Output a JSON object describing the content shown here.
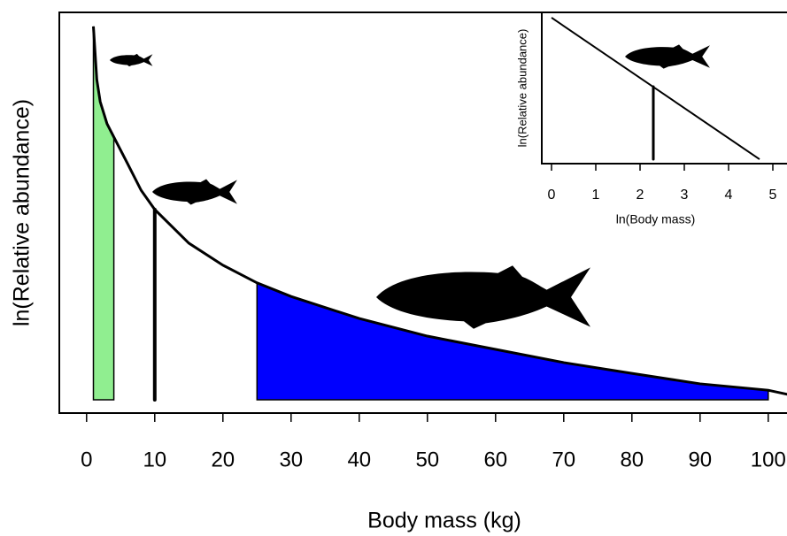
{
  "chart_data": [
    {
      "type": "line",
      "xlabel": "Body mass (kg)",
      "ylabel": "ln(Relative abundance)",
      "x": [
        1,
        1.5,
        2,
        3,
        4,
        6,
        8,
        10,
        15,
        20,
        25,
        30,
        40,
        50,
        60,
        70,
        80,
        90,
        100,
        103
      ],
      "series": [
        {
          "color": "#000000",
          "values": [
            96.5,
            83.2,
            77.7,
            72.2,
            68.9,
            62.3,
            55.6,
            50.8,
            42.4,
            36.9,
            32.5,
            29.1,
            23.6,
            19.2,
            15.9,
            12.6,
            9.9,
            7.3,
            5.7,
            4.6
          ]
        }
      ],
      "xlim": [
        -4,
        106
      ],
      "xticks": [
        0,
        10,
        20,
        30,
        40,
        50,
        60,
        70,
        80,
        90,
        100
      ],
      "ylim": [
        0,
        100
      ],
      "baseline": 3.3,
      "shaded_regions": [
        {
          "x": [
            1,
            4
          ],
          "color": "#90ee90"
        },
        {
          "x": [
            25,
            100
          ],
          "color": "#0000ff"
        }
      ],
      "marker": {
        "x": 10,
        "y": [
          3.3,
          50.8
        ]
      }
    },
    {
      "type": "line",
      "xlabel": "ln(Body mass)",
      "ylabel": "ln(Relative abundance)",
      "x": [
        0,
        4.7
      ],
      "series": [
        {
          "color": "#000000",
          "values": [
            96.5,
            2.9
          ]
        }
      ],
      "xlim": [
        -0.22,
        5.6
      ],
      "xticks": [
        0,
        1,
        2,
        3,
        4,
        5
      ],
      "ylim": [
        0,
        100
      ],
      "marker": {
        "x": 2.3,
        "y": [
          2.9,
          50.9
        ]
      }
    }
  ]
}
